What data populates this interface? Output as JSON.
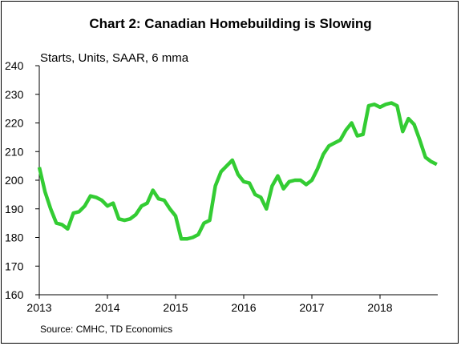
{
  "chart_data": {
    "type": "line",
    "title": "Chart 2: Canadian Homebuilding is Slowing",
    "ylabel": "Starts, Units, SAAR, 6 mma",
    "source": "Source: CMHC, TD Economics",
    "ylim": [
      160,
      240
    ],
    "yticks": [
      160,
      170,
      180,
      190,
      200,
      210,
      220,
      230,
      240
    ],
    "xticks": [
      2013,
      2014,
      2015,
      2016,
      2017,
      2018
    ],
    "xlim": [
      2013.0,
      2018.83
    ],
    "line_color": "#33cc33",
    "grid": false,
    "series": [
      {
        "x": [
          2013.0,
          2013.083,
          2013.167,
          2013.25,
          2013.333,
          2013.417,
          2013.5,
          2013.583,
          2013.667,
          2013.75,
          2013.833,
          2013.917,
          2014.0,
          2014.083,
          2014.167,
          2014.25,
          2014.333,
          2014.417,
          2014.5,
          2014.583,
          2014.667,
          2014.75,
          2014.833,
          2014.917,
          2015.0,
          2015.083,
          2015.167,
          2015.25,
          2015.333,
          2015.417,
          2015.5,
          2015.583,
          2015.667,
          2015.75,
          2015.833,
          2015.917,
          2016.0,
          2016.083,
          2016.167,
          2016.25,
          2016.333,
          2016.417,
          2016.5,
          2016.583,
          2016.667,
          2016.75,
          2016.833,
          2016.917,
          2017.0,
          2017.083,
          2017.167,
          2017.25,
          2017.333,
          2017.417,
          2017.5,
          2017.583,
          2017.667,
          2017.75,
          2017.833,
          2017.917,
          2018.0,
          2018.083,
          2018.167,
          2018.25,
          2018.333,
          2018.417,
          2018.5,
          2018.583,
          2018.667,
          2018.75,
          2018.833
        ],
        "values": [
          204.5,
          196,
          190,
          185,
          184.5,
          183,
          188.5,
          189,
          191,
          194.5,
          194,
          193,
          191,
          192,
          186.5,
          186,
          186.5,
          188,
          191,
          192,
          196.5,
          193.5,
          193,
          190,
          187.5,
          179.5,
          179.5,
          180,
          181,
          185,
          186,
          198,
          203,
          205,
          207,
          202,
          199.5,
          199,
          195,
          194,
          190,
          198,
          201.5,
          197,
          199.5,
          200,
          200,
          198.5,
          200,
          204,
          209,
          212,
          213,
          214,
          217.5,
          220,
          215.5,
          216,
          226,
          226.5,
          225.5,
          226.5,
          227,
          226,
          217,
          221.5,
          219.5,
          214,
          208,
          206.5,
          205.5
        ]
      }
    ]
  }
}
